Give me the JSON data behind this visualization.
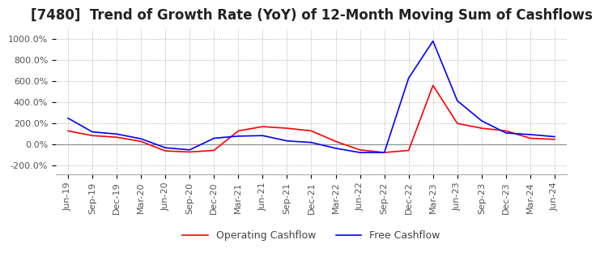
{
  "title": "[7480]  Trend of Growth Rate (YoY) of 12-Month Moving Sum of Cashflows",
  "title_fontsize": 12,
  "ylim": [
    -280,
    1100
  ],
  "yticks": [
    -200,
    0,
    200,
    400,
    600,
    800,
    1000
  ],
  "ytick_labels": [
    "-200.0%",
    "0.0%",
    "200.0%",
    "400.0%",
    "600.0%",
    "800.0%",
    "1000.0%"
  ],
  "x_labels": [
    "Jun-19",
    "Sep-19",
    "Dec-19",
    "Mar-20",
    "Jun-20",
    "Sep-20",
    "Dec-20",
    "Mar-21",
    "Jun-21",
    "Sep-21",
    "Dec-21",
    "Mar-22",
    "Jun-22",
    "Sep-22",
    "Dec-22",
    "Mar-23",
    "Jun-23",
    "Sep-23",
    "Dec-23",
    "Mar-24",
    "Jun-24"
  ],
  "operating_cashflow": [
    130,
    85,
    70,
    30,
    -60,
    -70,
    -55,
    130,
    170,
    155,
    130,
    30,
    -50,
    -75,
    -55,
    560,
    200,
    155,
    130,
    60,
    50
  ],
  "free_cashflow": [
    250,
    120,
    100,
    55,
    -30,
    -50,
    60,
    80,
    85,
    35,
    20,
    -35,
    -75,
    -75,
    630,
    980,
    415,
    225,
    110,
    95,
    75
  ],
  "operating_color": "#ff0000",
  "free_color": "#0000ff",
  "background_color": "#ffffff",
  "grid_color": "#aaaaaa",
  "legend_labels": [
    "Operating Cashflow",
    "Free Cashflow"
  ],
  "line_width": 1.2
}
